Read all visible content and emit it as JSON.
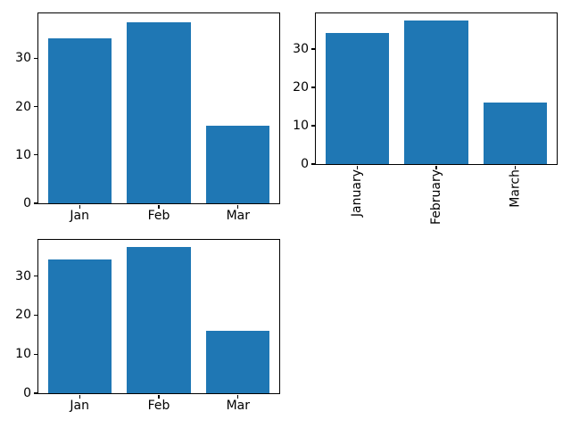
{
  "colors": {
    "bar": "#1f77b4",
    "axes": "#000000",
    "background": "#ffffff"
  },
  "chart_data": [
    {
      "type": "bar",
      "categories": [
        "Jan",
        "Feb",
        "Mar"
      ],
      "values": [
        34.2,
        37.4,
        16.1
      ],
      "yticks": [
        0,
        10,
        20,
        30
      ],
      "ylim": [
        0,
        39.3
      ],
      "xtick_rotation": 0,
      "bar_color": "#1f77b4",
      "bar_width": 0.8,
      "grid": false,
      "legend": false
    },
    {
      "type": "bar",
      "categories": [
        "January",
        "February",
        "March"
      ],
      "values": [
        34.2,
        37.4,
        16.1
      ],
      "yticks": [
        0,
        10,
        20,
        30
      ],
      "ylim": [
        0,
        39.3
      ],
      "xtick_rotation": 90,
      "bar_color": "#1f77b4",
      "bar_width": 0.8,
      "grid": false,
      "legend": false
    },
    {
      "type": "bar",
      "categories": [
        "Jan",
        "Feb",
        "Mar"
      ],
      "values": [
        34.2,
        37.4,
        16.1
      ],
      "yticks": [
        0,
        10,
        20,
        30
      ],
      "ylim": [
        0,
        39.3
      ],
      "xtick_rotation": 0,
      "bar_color": "#1f77b4",
      "bar_width": 0.8,
      "grid": false,
      "legend": false
    }
  ]
}
